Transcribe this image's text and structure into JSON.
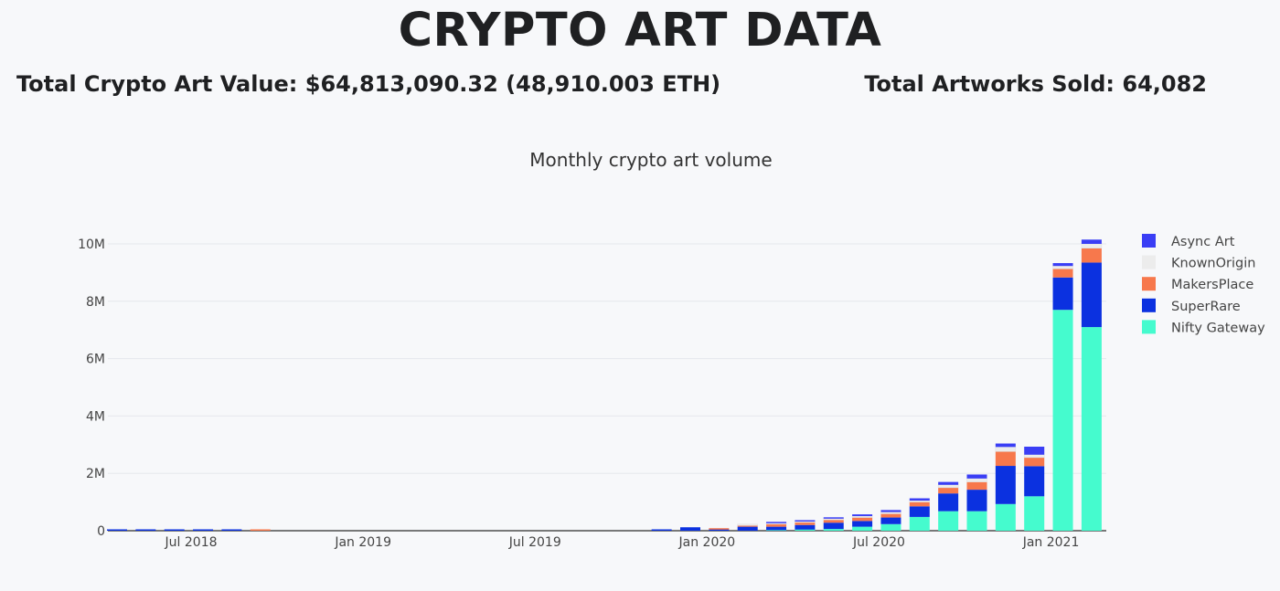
{
  "header": {
    "title": "CRYPTO ART DATA",
    "total_value": "Total Crypto Art Value: $64,813,090.32 (48,910.003 ETH)",
    "total_sold": "Total Artworks Sold: 64,082"
  },
  "colors": {
    "Async Art": "#3a3ef5",
    "KnownOrigin": "#ececec",
    "MakersPlace": "#f7784c",
    "SuperRare": "#0b31e0",
    "Nifty Gateway": "#45fbce",
    "background": "#f7f8fa",
    "grid": "#e5e7ec"
  },
  "chart_data": {
    "type": "bar",
    "stacked": true,
    "title": "Monthly crypto art volume",
    "xlabel": "",
    "ylabel": "",
    "ylim": [
      0,
      10500000
    ],
    "y_ticks": [
      {
        "value": 0,
        "label": "0"
      },
      {
        "value": 2000000,
        "label": "2M"
      },
      {
        "value": 4000000,
        "label": "4M"
      },
      {
        "value": 6000000,
        "label": "6M"
      },
      {
        "value": 8000000,
        "label": "8M"
      },
      {
        "value": 10000000,
        "label": "10M"
      }
    ],
    "x_ticks": [
      {
        "month": "2018-07",
        "label": "Jul 2018"
      },
      {
        "month": "2019-01",
        "label": "Jan 2019"
      },
      {
        "month": "2019-07",
        "label": "Jul 2019"
      },
      {
        "month": "2020-01",
        "label": "Jan 2020"
      },
      {
        "month": "2020-07",
        "label": "Jul 2020"
      },
      {
        "month": "2021-01",
        "label": "Jan 2021"
      }
    ],
    "grid": true,
    "legend_position": "right",
    "categories": [
      "2018-04",
      "2018-05",
      "2018-06",
      "2018-07",
      "2018-08",
      "2018-09",
      "2018-10",
      "2018-11",
      "2018-12",
      "2019-01",
      "2019-02",
      "2019-03",
      "2019-04",
      "2019-05",
      "2019-06",
      "2019-07",
      "2019-08",
      "2019-09",
      "2019-10",
      "2019-11",
      "2019-12",
      "2020-01",
      "2020-02",
      "2020-03",
      "2020-04",
      "2020-05",
      "2020-06",
      "2020-07",
      "2020-08",
      "2020-09",
      "2020-10",
      "2020-11",
      "2020-12",
      "2021-01",
      "2021-02"
    ],
    "series": [
      {
        "name": "Nifty Gateway",
        "values": [
          0,
          0,
          0,
          0,
          0,
          0,
          0,
          0,
          0,
          0,
          0,
          0,
          0,
          0,
          0,
          0,
          0,
          0,
          0,
          0,
          0,
          0,
          0,
          20000,
          40000,
          60000,
          140000,
          230000,
          480000,
          680000,
          680000,
          930000,
          1200000,
          7700000,
          7100000
        ]
      },
      {
        "name": "SuperRare",
        "values": [
          30000,
          25000,
          25000,
          25000,
          25000,
          0,
          0,
          0,
          0,
          0,
          0,
          0,
          0,
          0,
          0,
          0,
          0,
          0,
          0,
          20000,
          120000,
          40000,
          140000,
          120000,
          160000,
          220000,
          200000,
          230000,
          370000,
          620000,
          750000,
          1330000,
          1050000,
          1130000,
          2250000
        ]
      },
      {
        "name": "MakersPlace",
        "values": [
          0,
          0,
          0,
          0,
          0,
          20000,
          0,
          0,
          0,
          0,
          0,
          0,
          0,
          0,
          0,
          0,
          0,
          0,
          0,
          0,
          0,
          30000,
          40000,
          90000,
          90000,
          100000,
          120000,
          130000,
          150000,
          200000,
          270000,
          500000,
          300000,
          300000,
          500000
        ]
      },
      {
        "name": "KnownOrigin",
        "values": [
          0,
          0,
          0,
          0,
          0,
          0,
          0,
          0,
          0,
          0,
          0,
          0,
          0,
          0,
          0,
          0,
          0,
          0,
          0,
          0,
          0,
          0,
          20000,
          30000,
          30000,
          40000,
          50000,
          60000,
          50000,
          100000,
          120000,
          160000,
          100000,
          100000,
          150000
        ]
      },
      {
        "name": "Async Art",
        "values": [
          0,
          0,
          0,
          0,
          0,
          0,
          0,
          0,
          0,
          0,
          0,
          0,
          0,
          0,
          0,
          0,
          0,
          0,
          0,
          0,
          0,
          0,
          0,
          20000,
          40000,
          40000,
          60000,
          70000,
          80000,
          100000,
          140000,
          120000,
          280000,
          100000,
          150000
        ]
      }
    ],
    "legend_order": [
      "Async Art",
      "KnownOrigin",
      "MakersPlace",
      "SuperRare",
      "Nifty Gateway"
    ]
  }
}
